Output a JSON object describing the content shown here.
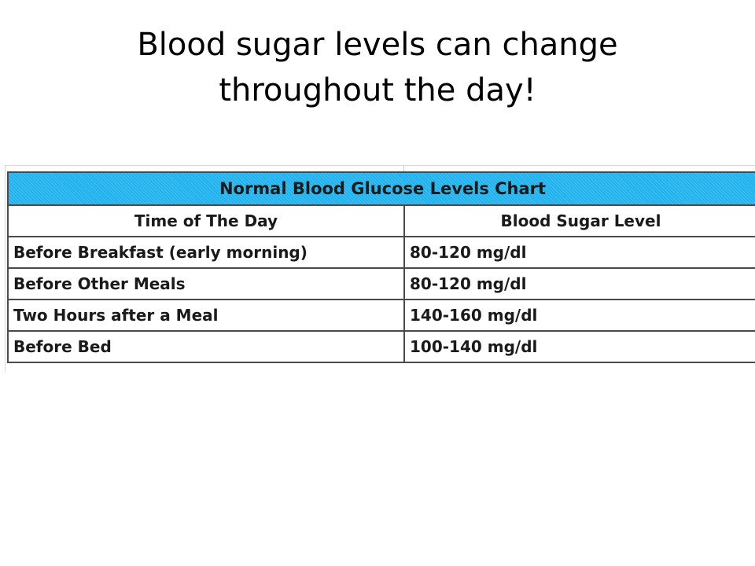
{
  "slide": {
    "title_line1": "Blood sugar levels can change",
    "title_line2": "throughout the day!"
  },
  "table": {
    "caption": "Normal Blood Glucose Levels Chart",
    "headers": [
      "Time of The Day",
      "Blood Sugar Level"
    ],
    "rows": [
      {
        "time": "Before Breakfast (early morning)",
        "level": "80-120 mg/dl"
      },
      {
        "time": "Before Other Meals",
        "level": "80-120 mg/dl"
      },
      {
        "time": "Two Hours after a Meal",
        "level": "140-160 mg/dl"
      },
      {
        "time": "Before Bed",
        "level": "100-140 mg/dl"
      }
    ],
    "colors": {
      "caption_background": "#1fb2ee",
      "border": "#4a4a4a"
    }
  }
}
